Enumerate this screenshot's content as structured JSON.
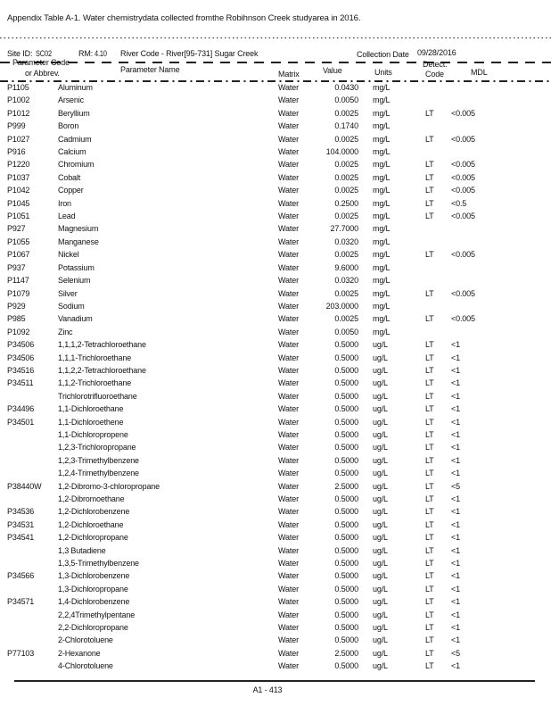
{
  "page": {
    "title": "Appendix Table A-1. Water chemistrydata collected fromthe Robihnson Creek studyarea in 2016.",
    "footer": "A1 - 413"
  },
  "site": {
    "site_id_label": "Site ID:",
    "site_id": "SC02",
    "rm_label": "RM:",
    "rm_value": "4.10",
    "river_code": "River Code - River[95-731] Sugar Creek",
    "collection_date_label": "Collection Date",
    "collection_date": "09/28/2016"
  },
  "table": {
    "headers": {
      "code1": "Parameter Code",
      "code2": "or Abbrev.",
      "name": "Parameter Name",
      "matrix": "Matrix",
      "value": "Value",
      "units": "Units",
      "detect1": "Detect.",
      "detect2": "Code",
      "mdl": "MDL"
    },
    "rows": [
      [
        "P1105",
        "Aluminum",
        "Water",
        "0.0430",
        "mg/L",
        "",
        ""
      ],
      [
        "P1002",
        "Arsenic",
        "Water",
        "0.0050",
        "mg/L",
        "",
        ""
      ],
      [
        "P1012",
        "Beryllium",
        "Water",
        "0.0025",
        "mg/L",
        "LT",
        "<0.005"
      ],
      [
        "P999",
        "Boron",
        "Water",
        "0.1740",
        "mg/L",
        "",
        ""
      ],
      [
        "P1027",
        "Cadmium",
        "Water",
        "0.0025",
        "mg/L",
        "LT",
        "<0.005"
      ],
      [
        "P916",
        "Calcium",
        "Water",
        "104.0000",
        "mg/L",
        "",
        ""
      ],
      [
        "P1220",
        "Chromium",
        "Water",
        "0.0025",
        "mg/L",
        "LT",
        "<0.005"
      ],
      [
        "P1037",
        "Cobalt",
        "Water",
        "0.0025",
        "mg/L",
        "LT",
        "<0.005"
      ],
      [
        "P1042",
        "Copper",
        "Water",
        "0.0025",
        "mg/L",
        "LT",
        "<0.005"
      ],
      [
        "P1045",
        "Iron",
        "Water",
        "0.2500",
        "mg/L",
        "LT",
        "<0.5"
      ],
      [
        "P1051",
        "Lead",
        "Water",
        "0.0025",
        "mg/L",
        "LT",
        "<0.005"
      ],
      [
        "P927",
        "Magnesium",
        "Water",
        "27.7000",
        "mg/L",
        "",
        ""
      ],
      [
        "P1055",
        "Manganese",
        "Water",
        "0.0320",
        "mg/L",
        "",
        ""
      ],
      [
        "P1067",
        "Nickel",
        "Water",
        "0.0025",
        "mg/L",
        "LT",
        "<0.005"
      ],
      [
        "P937",
        "Potassium",
        "Water",
        "9.6000",
        "mg/L",
        "",
        ""
      ],
      [
        "P1147",
        "Selenium",
        "Water",
        "0.0320",
        "mg/L",
        "",
        ""
      ],
      [
        "P1079",
        "Silver",
        "Water",
        "0.0025",
        "mg/L",
        "LT",
        "<0.005"
      ],
      [
        "P929",
        "Sodium",
        "Water",
        "203.0000",
        "mg/L",
        "",
        ""
      ],
      [
        "P985",
        "Vanadium",
        "Water",
        "0.0025",
        "mg/L",
        "LT",
        "<0.005"
      ],
      [
        "P1092",
        "Zinc",
        "Water",
        "0.0050",
        "mg/L",
        "",
        ""
      ],
      [
        "P34506",
        "1,1,1,2-Tetrachloroethane",
        "Water",
        "0.5000",
        "ug/L",
        "LT",
        "<1"
      ],
      [
        "P34506",
        "1,1,1-Trichloroethane",
        "Water",
        "0.5000",
        "ug/L",
        "LT",
        "<1"
      ],
      [
        "P34516",
        "1,1,2,2-Tetrachloroethane",
        "Water",
        "0.5000",
        "ug/L",
        "LT",
        "<1"
      ],
      [
        "P34511",
        "1,1,2-Trichloroethane",
        "Water",
        "0.5000",
        "ug/L",
        "LT",
        "<1"
      ],
      [
        "",
        "Trichlorotrifluoroethane",
        "Water",
        "0.5000",
        "ug/L",
        "LT",
        "<1"
      ],
      [
        "P34496",
        "1,1-Dichloroethane",
        "Water",
        "0.5000",
        "ug/L",
        "LT",
        "<1"
      ],
      [
        "P34501",
        "1,1-Dichloroethene",
        "Water",
        "0.5000",
        "ug/L",
        "LT",
        "<1"
      ],
      [
        "",
        "1,1-Dichloropropene",
        "Water",
        "0.5000",
        "ug/L",
        "LT",
        "<1"
      ],
      [
        "",
        "1,2,3-Trichloropropane",
        "Water",
        "0.5000",
        "ug/L",
        "LT",
        "<1"
      ],
      [
        "",
        "1,2,3-Trimethylbenzene",
        "Water",
        "0.5000",
        "ug/L",
        "LT",
        "<1"
      ],
      [
        "",
        "1,2,4-Trimethylbenzene",
        "Water",
        "0.5000",
        "ug/L",
        "LT",
        "<1"
      ],
      [
        "P38440W",
        "1,2-Dibromo-3-chloropropane",
        "Water",
        "2.5000",
        "ug/L",
        "LT",
        "<5"
      ],
      [
        "",
        "1,2-Dibromoethane",
        "Water",
        "0.5000",
        "ug/L",
        "LT",
        "<1"
      ],
      [
        "P34536",
        "1,2-Dichlorobenzene",
        "Water",
        "0.5000",
        "ug/L",
        "LT",
        "<1"
      ],
      [
        "P34531",
        "1,2-Dichloroethane",
        "Water",
        "0.5000",
        "ug/L",
        "LT",
        "<1"
      ],
      [
        "P34541",
        "1,2-Dichloropropane",
        "Water",
        "0.5000",
        "ug/L",
        "LT",
        "<1"
      ],
      [
        "",
        "1,3 Butadiene",
        "Water",
        "0.5000",
        "ug/L",
        "LT",
        "<1"
      ],
      [
        "",
        "1,3,5-Trimethylbenzene",
        "Water",
        "0.5000",
        "ug/L",
        "LT",
        "<1"
      ],
      [
        "P34566",
        "1,3-Dichlorobenzene",
        "Water",
        "0.5000",
        "ug/L",
        "LT",
        "<1"
      ],
      [
        "",
        "1,3-Dichloropropane",
        "Water",
        "0.5000",
        "ug/L",
        "LT",
        "<1"
      ],
      [
        "P34571",
        "1,4-Dichlorobenzene",
        "Water",
        "0.5000",
        "ug/L",
        "LT",
        "<1"
      ],
      [
        "",
        "2,2,4Trimethylpentane",
        "Water",
        "0.5000",
        "ug/L",
        "LT",
        "<1"
      ],
      [
        "",
        "2,2-Dichloropropane",
        "Water",
        "0.5000",
        "ug/L",
        "LT",
        "<1"
      ],
      [
        "",
        "2-Chlorotoluene",
        "Water",
        "0.5000",
        "ug/L",
        "LT",
        "<1"
      ],
      [
        "P77103",
        "2-Hexanone",
        "Water",
        "2.5000",
        "ug/L",
        "LT",
        "<5"
      ],
      [
        "",
        "4-Chlorotoluene",
        "Water",
        "0.5000",
        "ug/L",
        "LT",
        "<1"
      ]
    ]
  }
}
